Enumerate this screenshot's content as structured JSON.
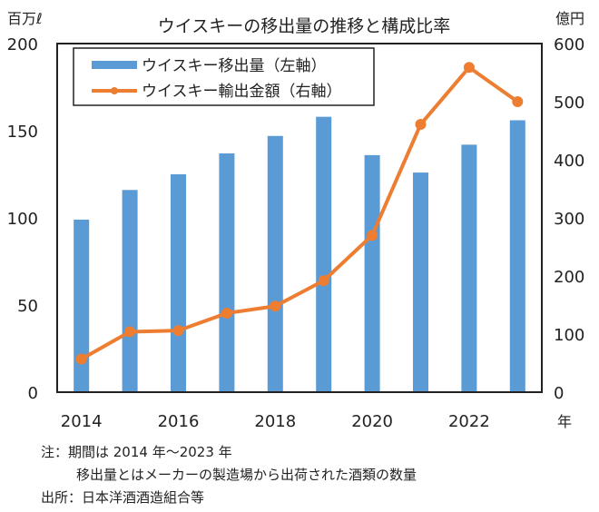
{
  "chart_data": {
    "type": "bar+line",
    "title": "ウイスキーの移出量の推移と構成比率",
    "xlabel": "年",
    "ylabel_left": "百万ℓ",
    "ylabel_right": "億円",
    "categories": [
      "2014",
      "2015",
      "2016",
      "2017",
      "2018",
      "2019",
      "2020",
      "2021",
      "2022",
      "2023"
    ],
    "x_tick_labels": [
      "2014",
      "2016",
      "2018",
      "2020",
      "2022"
    ],
    "ylim_left": [
      0,
      200
    ],
    "yticks_left": [
      0,
      50,
      100,
      150,
      200
    ],
    "ylim_right": [
      0,
      600
    ],
    "yticks_right": [
      0,
      100,
      200,
      300,
      400,
      500,
      600
    ],
    "grid": false,
    "legend_position": "top-left",
    "series": [
      {
        "name": "ウイスキー移出量（左軸）",
        "type": "bar",
        "axis": "left",
        "color": "#5b9bd5",
        "values": [
          99,
          116,
          125,
          137,
          147,
          158,
          136,
          126,
          142,
          156
        ]
      },
      {
        "name": "ウイスキー輸出金額（右軸）",
        "type": "line",
        "axis": "right",
        "color": "#ed7d31",
        "values": [
          57,
          104,
          106,
          136,
          148,
          192,
          270,
          461,
          559,
          500
        ]
      }
    ]
  },
  "notes": {
    "line1": "注：期間は 2014 年～2023 年",
    "line2": "移出量とはメーカーの製造場から出荷された酒類の数量",
    "line3": "出所：日本洋酒酒造組合等"
  }
}
